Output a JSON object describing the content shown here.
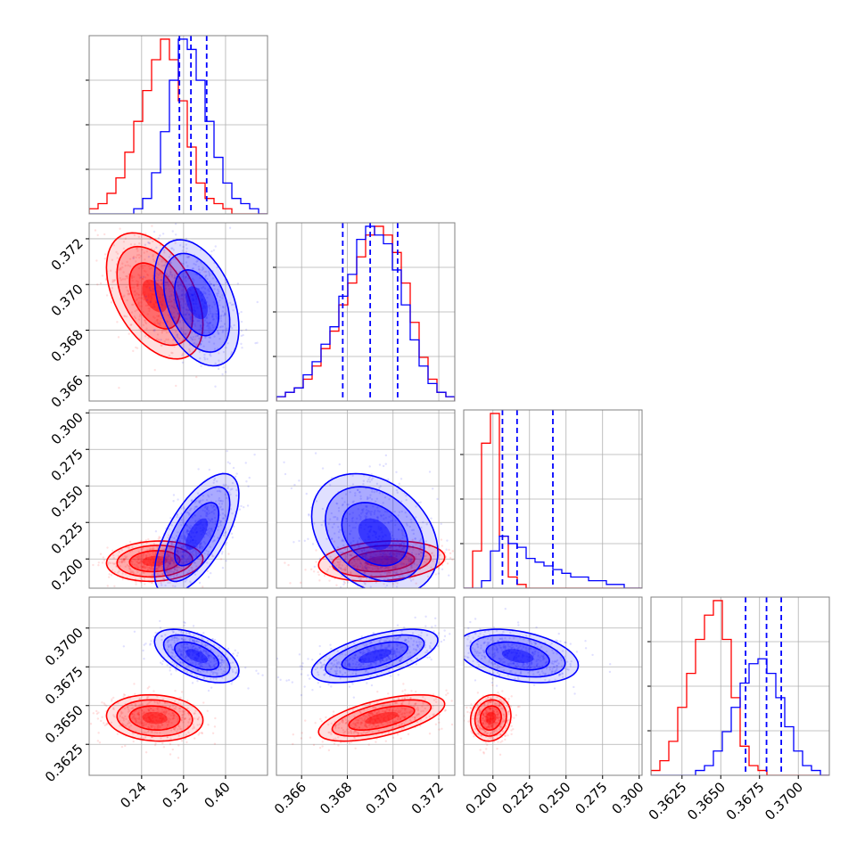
{
  "colors": {
    "series_a": "#ff0000",
    "series_b": "#0000ff",
    "grid": "#b0b0b0",
    "frame": "#808080"
  },
  "chart_data": {
    "type": "corner",
    "title": "",
    "grid": true,
    "parameters": [
      {
        "range": [
          0.14,
          0.48
        ],
        "ticks": [
          "0.24",
          "0.32",
          "0.40"
        ],
        "tick_values": [
          0.24,
          0.32,
          0.4
        ]
      },
      {
        "range": [
          0.3649,
          0.3727
        ],
        "ticks": [
          "0.366",
          "0.368",
          "0.370",
          "0.372"
        ],
        "tick_values": [
          0.366,
          0.368,
          0.37,
          0.372
        ]
      },
      {
        "range": [
          0.18,
          0.302
        ],
        "ticks": [
          "0.200",
          "0.225",
          "0.250",
          "0.275",
          "0.300"
        ],
        "tick_values": [
          0.2,
          0.225,
          0.25,
          0.275,
          0.3
        ]
      },
      {
        "range": [
          0.3605,
          0.372
        ],
        "ticks": [
          "0.3625",
          "0.3650",
          "0.3675",
          "0.3700"
        ],
        "tick_values": [
          0.3625,
          0.365,
          0.3675,
          0.37
        ]
      }
    ],
    "series": [
      {
        "color": "#ff0000",
        "means": [
          0.265,
          0.3695,
          0.1985,
          0.3642
        ],
        "sds": [
          0.04,
          0.0012,
          0.006,
          0.00065
        ],
        "corr": {
          "0-1": -0.45,
          "0-2": 0.1,
          "0-3": -0.1,
          "1-2": 0.2,
          "1-3": 0.6,
          "2-3": 0.1
        }
      },
      {
        "color": "#0000ff",
        "means": [
          0.345,
          0.3692,
          0.217,
          0.3682
        ],
        "sds": [
          0.035,
          0.0012,
          0.018,
          0.00075
        ],
        "corr": {
          "0-1": -0.4,
          "0-2": 0.65,
          "0-3": -0.55,
          "1-2": -0.3,
          "1-3": 0.6,
          "2-3": -0.35
        }
      }
    ],
    "quantile_lines": [
      [
        0.312,
        0.334,
        0.364
      ],
      [
        0.3678,
        0.369,
        0.3702
      ],
      [
        0.2065,
        0.2165,
        0.241
      ],
      [
        0.3666,
        0.36795,
        0.3689
      ]
    ],
    "hist_bins": [
      {
        "edges_start": 0.14,
        "bin_width": 0.017,
        "series_a": [
          1,
          2,
          4,
          7,
          12,
          18,
          24,
          30,
          34,
          30,
          22,
          13,
          6,
          3,
          2,
          1,
          0,
          0,
          0,
          0
        ],
        "series_b": [
          0,
          0,
          0,
          0,
          0,
          1,
          3,
          8,
          16,
          26,
          34,
          32,
          26,
          18,
          11,
          6,
          3,
          2,
          1,
          0
        ]
      },
      {
        "edges_start": 0.3649,
        "bin_width": 0.00039,
        "series_a": [
          1,
          2,
          3,
          5,
          8,
          12,
          16,
          22,
          27,
          33,
          38,
          40,
          38,
          34,
          27,
          18,
          10,
          5,
          2,
          1
        ],
        "series_b": [
          1,
          2,
          3,
          6,
          9,
          13,
          17,
          24,
          29,
          37,
          40,
          38,
          36,
          30,
          22,
          14,
          8,
          4,
          2,
          1
        ]
      },
      {
        "edges_start": 0.18,
        "bin_width": 0.0061,
        "series_a": [
          0,
          10,
          39,
          47,
          14,
          3,
          1,
          0,
          0,
          0,
          0,
          0,
          0,
          0,
          0,
          0,
          0,
          0,
          0,
          0
        ],
        "series_b": [
          0,
          0,
          2,
          10,
          14,
          12,
          11,
          8,
          7,
          6,
          5,
          4,
          3,
          3,
          2,
          2,
          1,
          1,
          0,
          0
        ]
      },
      {
        "edges_start": 0.3605,
        "bin_width": 0.000575,
        "series_a": [
          1,
          3,
          7,
          14,
          21,
          28,
          33,
          36,
          28,
          16,
          6,
          2,
          1,
          0,
          0,
          0,
          0,
          0,
          0,
          0
        ],
        "series_b": [
          0,
          0,
          0,
          0,
          0,
          1,
          2,
          5,
          9,
          14,
          19,
          23,
          24,
          21,
          16,
          10,
          5,
          2,
          1,
          0
        ]
      }
    ]
  }
}
